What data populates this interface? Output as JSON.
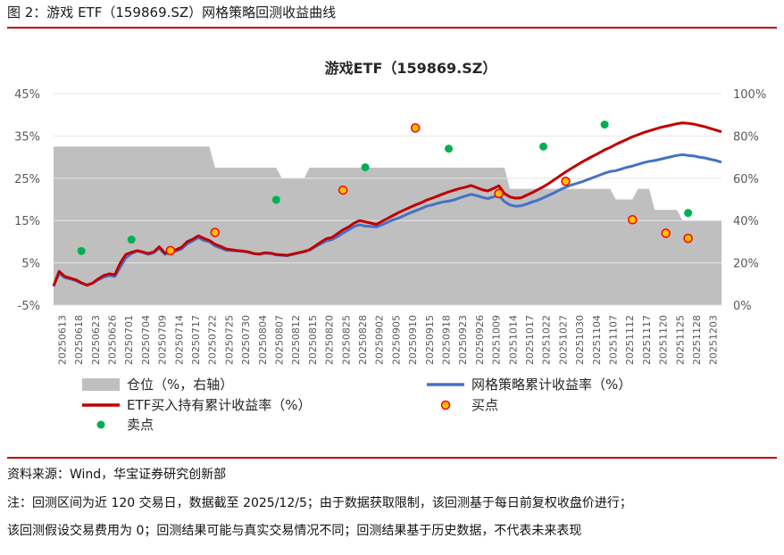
{
  "figure": {
    "title": "图 2：游戏 ETF（159869.SZ）网格策略回测收益曲线",
    "source": "资料来源：Wind，华宝证券研究创新部",
    "note_line1": "注：回测区间为近 120 交易日，数据截至 2025/12/5；由于数据获取限制，该回测基于每日前复权收盘价进行；",
    "note_line2": "该回测假设交易费用为 0；回测结果可能与真实交易情况不同；回测结果基于历史数据，不代表未来表现"
  },
  "colors": {
    "accent_rule": "#c00000",
    "position_area": "#bfbfbf",
    "grid_strategy": "#4472c4",
    "etf_buyhold": "#c00000",
    "buy_dot": "#ffc000",
    "buy_dot_edge": "#ff0000",
    "sell_dot": "#00b050"
  },
  "chart_data": {
    "type": "line",
    "title": "游戏ETF（159869.SZ）",
    "left_axis": {
      "ticks": [
        "45%",
        "35%",
        "25%",
        "15%",
        "5%",
        "-5%"
      ],
      "range": [
        -5,
        45
      ],
      "unit": "%"
    },
    "right_axis": {
      "ticks": [
        "100%",
        "80%",
        "60%",
        "40%",
        "20%",
        "0%"
      ],
      "range": [
        0,
        100
      ],
      "unit": "%"
    },
    "x_tick_labels": [
      "20250613",
      "20250618",
      "20250623",
      "20250626",
      "20250701",
      "20250704",
      "20250709",
      "20250714",
      "20250717",
      "20250722",
      "20250725",
      "20250730",
      "20250804",
      "20250807",
      "20250812",
      "20250815",
      "20250820",
      "20250825",
      "20250828",
      "20250902",
      "20250905",
      "20250910",
      "20250915",
      "20250918",
      "20250923",
      "20250926",
      "20251009",
      "20251014",
      "20251017",
      "20251022",
      "20251027",
      "20251030",
      "20251104",
      "20251107",
      "20251112",
      "20251117",
      "20251120",
      "20251125",
      "20251128",
      "20251203"
    ],
    "legend": [
      {
        "label": "仓位（%，右轴）",
        "kind": "area",
        "series": "position"
      },
      {
        "label": "网格策略累计收益率（%）",
        "kind": "line",
        "series": "grid_strategy"
      },
      {
        "label": "ETF买入持有累计收益率（%）",
        "kind": "line",
        "series": "etf_buyhold"
      },
      {
        "label": "买点",
        "kind": "dot",
        "series": "buy_points"
      },
      {
        "label": "卖点",
        "kind": "dot",
        "series": "sell_points"
      }
    ],
    "series": {
      "position": [
        75,
        75,
        75,
        75,
        75,
        75,
        75,
        75,
        75,
        75,
        75,
        75,
        75,
        75,
        75,
        75,
        75,
        75,
        75,
        75,
        75,
        75,
        75,
        75,
        75,
        75,
        75,
        75,
        75,
        65,
        65,
        65,
        65,
        65,
        65,
        65,
        65,
        65,
        65,
        65,
        65,
        60,
        60,
        60,
        60,
        60,
        65,
        65,
        65,
        65,
        65,
        65,
        65,
        65,
        65,
        65,
        65,
        65,
        65,
        65,
        65,
        65,
        65,
        65,
        65,
        65,
        65,
        65,
        65,
        65,
        65,
        65,
        65,
        65,
        65,
        65,
        65,
        65,
        65,
        65,
        65,
        65,
        55,
        55,
        55,
        55,
        55,
        55,
        55,
        55,
        55,
        55,
        55,
        55,
        55,
        55,
        55,
        55,
        55,
        55,
        55,
        50,
        50,
        50,
        50,
        55,
        55,
        55,
        45,
        45,
        45,
        45,
        45,
        40,
        40,
        40,
        40,
        40,
        40,
        40,
        40
      ],
      "grid_strategy": [
        -0.5,
        2.5,
        1.5,
        1.2,
        0.8,
        0.2,
        -0.2,
        0.2,
        1.0,
        1.6,
        2.0,
        1.8,
        4.0,
        6.2,
        7.2,
        7.8,
        7.5,
        7.0,
        7.4,
        8.5,
        7.0,
        7.5,
        7.8,
        8.3,
        9.5,
        10.2,
        11.0,
        10.3,
        10.0,
        9.0,
        8.5,
        8.0,
        7.9,
        7.8,
        7.7,
        7.5,
        7.2,
        7.0,
        7.3,
        7.2,
        6.9,
        6.8,
        6.7,
        7.0,
        7.3,
        7.6,
        8.0,
        8.8,
        9.5,
        10.2,
        10.5,
        11.2,
        12.0,
        12.8,
        13.6,
        14.0,
        13.7,
        13.6,
        13.5,
        14.0,
        14.6,
        15.2,
        15.6,
        16.2,
        16.8,
        17.3,
        17.8,
        18.4,
        18.7,
        19.1,
        19.4,
        19.6,
        19.9,
        20.4,
        20.8,
        21.2,
        20.9,
        20.5,
        20.2,
        20.6,
        20.9,
        19.5,
        18.7,
        18.4,
        18.5,
        18.9,
        19.4,
        19.8,
        20.4,
        21.0,
        21.6,
        22.3,
        22.9,
        23.4,
        23.8,
        24.2,
        24.7,
        25.2,
        25.7,
        26.2,
        26.6,
        26.8,
        27.2,
        27.6,
        27.9,
        28.3,
        28.7,
        29.0,
        29.2,
        29.5,
        29.8,
        30.1,
        30.4,
        30.6,
        30.4,
        30.3,
        30.0,
        29.8,
        29.5,
        29.2,
        28.8
      ],
      "etf_buyhold": [
        -0.5,
        3.0,
        1.8,
        1.4,
        1.0,
        0.3,
        -0.3,
        0.2,
        1.2,
        2.0,
        2.4,
        2.2,
        5.0,
        7.0,
        7.5,
        7.9,
        7.6,
        7.2,
        7.6,
        8.8,
        7.3,
        7.8,
        8.1,
        8.7,
        10.0,
        10.6,
        11.4,
        10.8,
        10.3,
        9.4,
        8.9,
        8.3,
        8.1,
        7.9,
        7.8,
        7.6,
        7.2,
        7.1,
        7.4,
        7.3,
        7.0,
        6.9,
        6.8,
        7.1,
        7.4,
        7.7,
        8.1,
        9.0,
        9.9,
        10.7,
        11.0,
        11.9,
        12.8,
        13.5,
        14.4,
        15.0,
        14.7,
        14.4,
        14.1,
        14.8,
        15.5,
        16.2,
        16.9,
        17.5,
        18.1,
        18.7,
        19.2,
        19.8,
        20.3,
        20.8,
        21.3,
        21.8,
        22.2,
        22.6,
        22.9,
        23.3,
        22.8,
        22.3,
        22.0,
        22.6,
        23.2,
        21.4,
        20.6,
        20.3,
        20.4,
        21.0,
        21.6,
        22.3,
        23.0,
        23.8,
        24.7,
        25.6,
        26.5,
        27.3,
        28.1,
        28.9,
        29.6,
        30.3,
        31.0,
        31.7,
        32.3,
        33.0,
        33.6,
        34.2,
        34.8,
        35.3,
        35.8,
        36.2,
        36.6,
        37.0,
        37.3,
        37.6,
        37.9,
        38.1,
        38.0,
        37.8,
        37.5,
        37.2,
        36.8,
        36.4,
        36.0
      ],
      "buy_points": [
        [
          21,
          7.9
        ],
        [
          29,
          12.2
        ],
        [
          52,
          22.2
        ],
        [
          65,
          36.9
        ],
        [
          80,
          21.4
        ],
        [
          92,
          24.3
        ],
        [
          104,
          15.2
        ],
        [
          110,
          12.0
        ],
        [
          114,
          10.8
        ]
      ],
      "sell_points": [
        [
          5,
          7.8
        ],
        [
          14,
          10.5
        ],
        [
          40,
          19.9
        ],
        [
          56,
          27.6
        ],
        [
          71,
          32.0
        ],
        [
          88,
          32.5
        ],
        [
          99,
          37.7
        ],
        [
          114,
          16.8
        ]
      ]
    }
  }
}
